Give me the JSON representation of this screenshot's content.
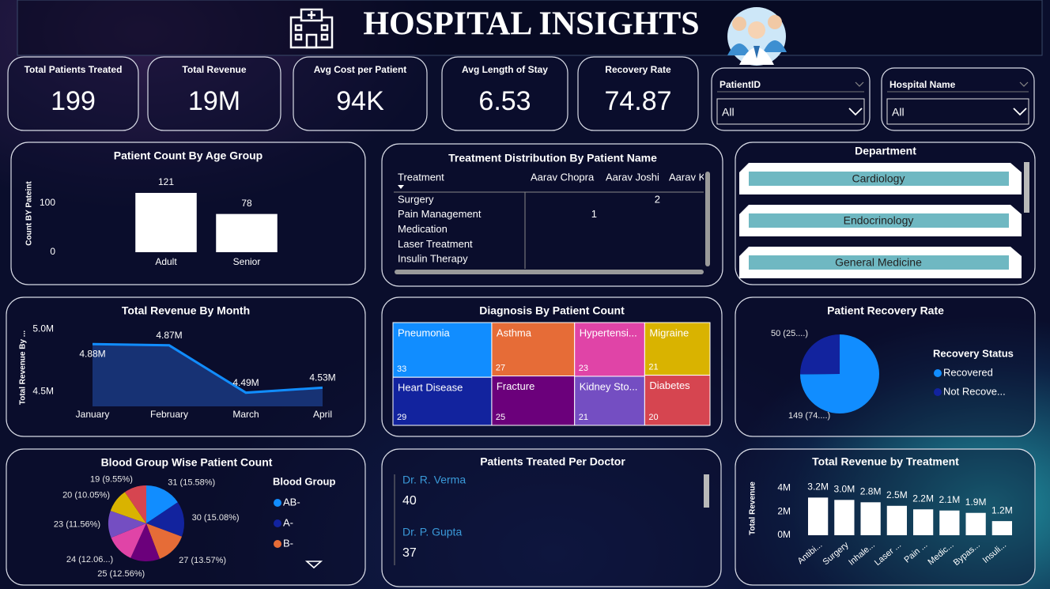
{
  "header": {
    "title": "HOSPITAL INSIGHTS"
  },
  "kpis": [
    {
      "label": "Total Patients Treated",
      "value": 199
    },
    {
      "label": "Total Revenue",
      "value": "19M"
    },
    {
      "label": "Avg Cost per Patient",
      "value": "94K"
    },
    {
      "label": "Avg Length of Stay",
      "value": 6.53
    },
    {
      "label": "Recovery Rate",
      "value": 74.87
    }
  ],
  "slicers": [
    {
      "label": "PatientID",
      "value": "All"
    },
    {
      "label": "Hospital Name",
      "value": "All"
    }
  ],
  "department": {
    "title": "Department",
    "items": [
      "Cardiology",
      "Endocrinology",
      "General Medicine"
    ]
  },
  "treatment_table": {
    "title": "Treatment Distribution By Patient Name",
    "columns": [
      "Treatment",
      "Aarav Chopra",
      "Aarav Joshi",
      "Aarav K"
    ],
    "rows": [
      [
        "Surgery",
        null,
        2,
        null
      ],
      [
        "Pain Management",
        1,
        null,
        null
      ],
      [
        "Medication",
        null,
        null,
        null
      ],
      [
        "Laser Treatment",
        null,
        null,
        null
      ],
      [
        "Insulin Therapy",
        null,
        null,
        null
      ]
    ]
  },
  "doctors": {
    "title": "Patients Treated Per Doctor",
    "items": [
      {
        "name": "Dr. R. Verma",
        "count": 40
      },
      {
        "name": "Dr. P. Gupta",
        "count": 37
      }
    ]
  },
  "chart_data": [
    {
      "type": "bar",
      "title": "Patient Count By Age Group",
      "y_label": "Count BY Pateint",
      "categories": [
        "Adult",
        "Senior"
      ],
      "values": [
        121,
        78
      ],
      "color": "#ffffff",
      "ylim": [
        0,
        130
      ],
      "yticks": [
        0,
        100
      ]
    },
    {
      "type": "line",
      "title": "Total Revenue By Month",
      "y_label": "Total Revenue By ...",
      "categories": [
        "January",
        "February",
        "March",
        "April"
      ],
      "values": [
        4880000,
        4870000,
        4490000,
        4530000
      ],
      "value_labels": [
        "4.88M",
        "4.87M",
        "4.49M",
        "4.53M"
      ],
      "color": "#118DFF",
      "ylim": [
        4380000,
        5040000
      ],
      "yticks": [
        {
          "value": 4500000,
          "label": "4.5M"
        },
        {
          "value": 5000000,
          "label": "5.0M"
        }
      ]
    },
    {
      "type": "treemap",
      "title": "Diagnosis By Patient Count",
      "categories": [
        "Pneumonia",
        "Asthma",
        "Hypertensi...",
        "Migraine",
        "Heart Disease",
        "Fracture",
        "Kidney Sto...",
        "Diabetes"
      ],
      "values": [
        33,
        27,
        23,
        21,
        29,
        25,
        21,
        20
      ],
      "colors": [
        "#118DFF",
        "#E66C37",
        "#E044A7",
        "#D9B300",
        "#12239E",
        "#6B007B",
        "#744EC2",
        "#D64550"
      ]
    },
    {
      "type": "pie",
      "title": "Patient Recovery Rate",
      "legend_title": "Recovery Status",
      "categories": [
        "Recovered",
        "Not Recove..."
      ],
      "values": [
        149,
        50
      ],
      "value_labels": [
        "149 (74....)",
        "50 (25....)"
      ],
      "colors": [
        "#118DFF",
        "#12239E"
      ]
    },
    {
      "type": "pie",
      "title": "Blood Group Wise Patient Count",
      "legend_title": "Blood Group",
      "categories": [
        "AB-",
        "A-",
        "B-",
        null,
        null,
        null,
        null,
        null
      ],
      "values": [
        31,
        30,
        27,
        25,
        24,
        23,
        20,
        19
      ],
      "value_labels": [
        "31 (15.58%)",
        "30 (15.08%)",
        "27 (13.57%)",
        "25 (12.56%)",
        "24 (12.06...)",
        "23 (11.56%)",
        "20 (10.05%)",
        "19 (9.55%)"
      ],
      "colors": [
        "#118DFF",
        "#12239E",
        "#E66C37",
        "#6B007B",
        "#E044A7",
        "#744EC2",
        "#D9B300",
        "#D64550"
      ]
    },
    {
      "type": "bar",
      "title": "Total Revenue by Treatment",
      "y_label": "Total Revenue",
      "categories": [
        "Antibi...",
        "Surgery",
        "Inhale...",
        "Laser ...",
        "Pain ...",
        "Medic...",
        "Bypas...",
        "Insuli..."
      ],
      "values": [
        3200000,
        3000000,
        2800000,
        2500000,
        2200000,
        2100000,
        1900000,
        1200000
      ],
      "value_labels": [
        "3.2M",
        "3.0M",
        "2.8M",
        "2.5M",
        "2.2M",
        "2.1M",
        "1.9M",
        "1.2M"
      ],
      "color": "#ffffff",
      "ylim": [
        0,
        4500000
      ],
      "yticks": [
        {
          "value": 0,
          "label": "0M"
        },
        {
          "value": 2000000,
          "label": "2M"
        },
        {
          "value": 4000000,
          "label": "4M"
        }
      ]
    }
  ]
}
